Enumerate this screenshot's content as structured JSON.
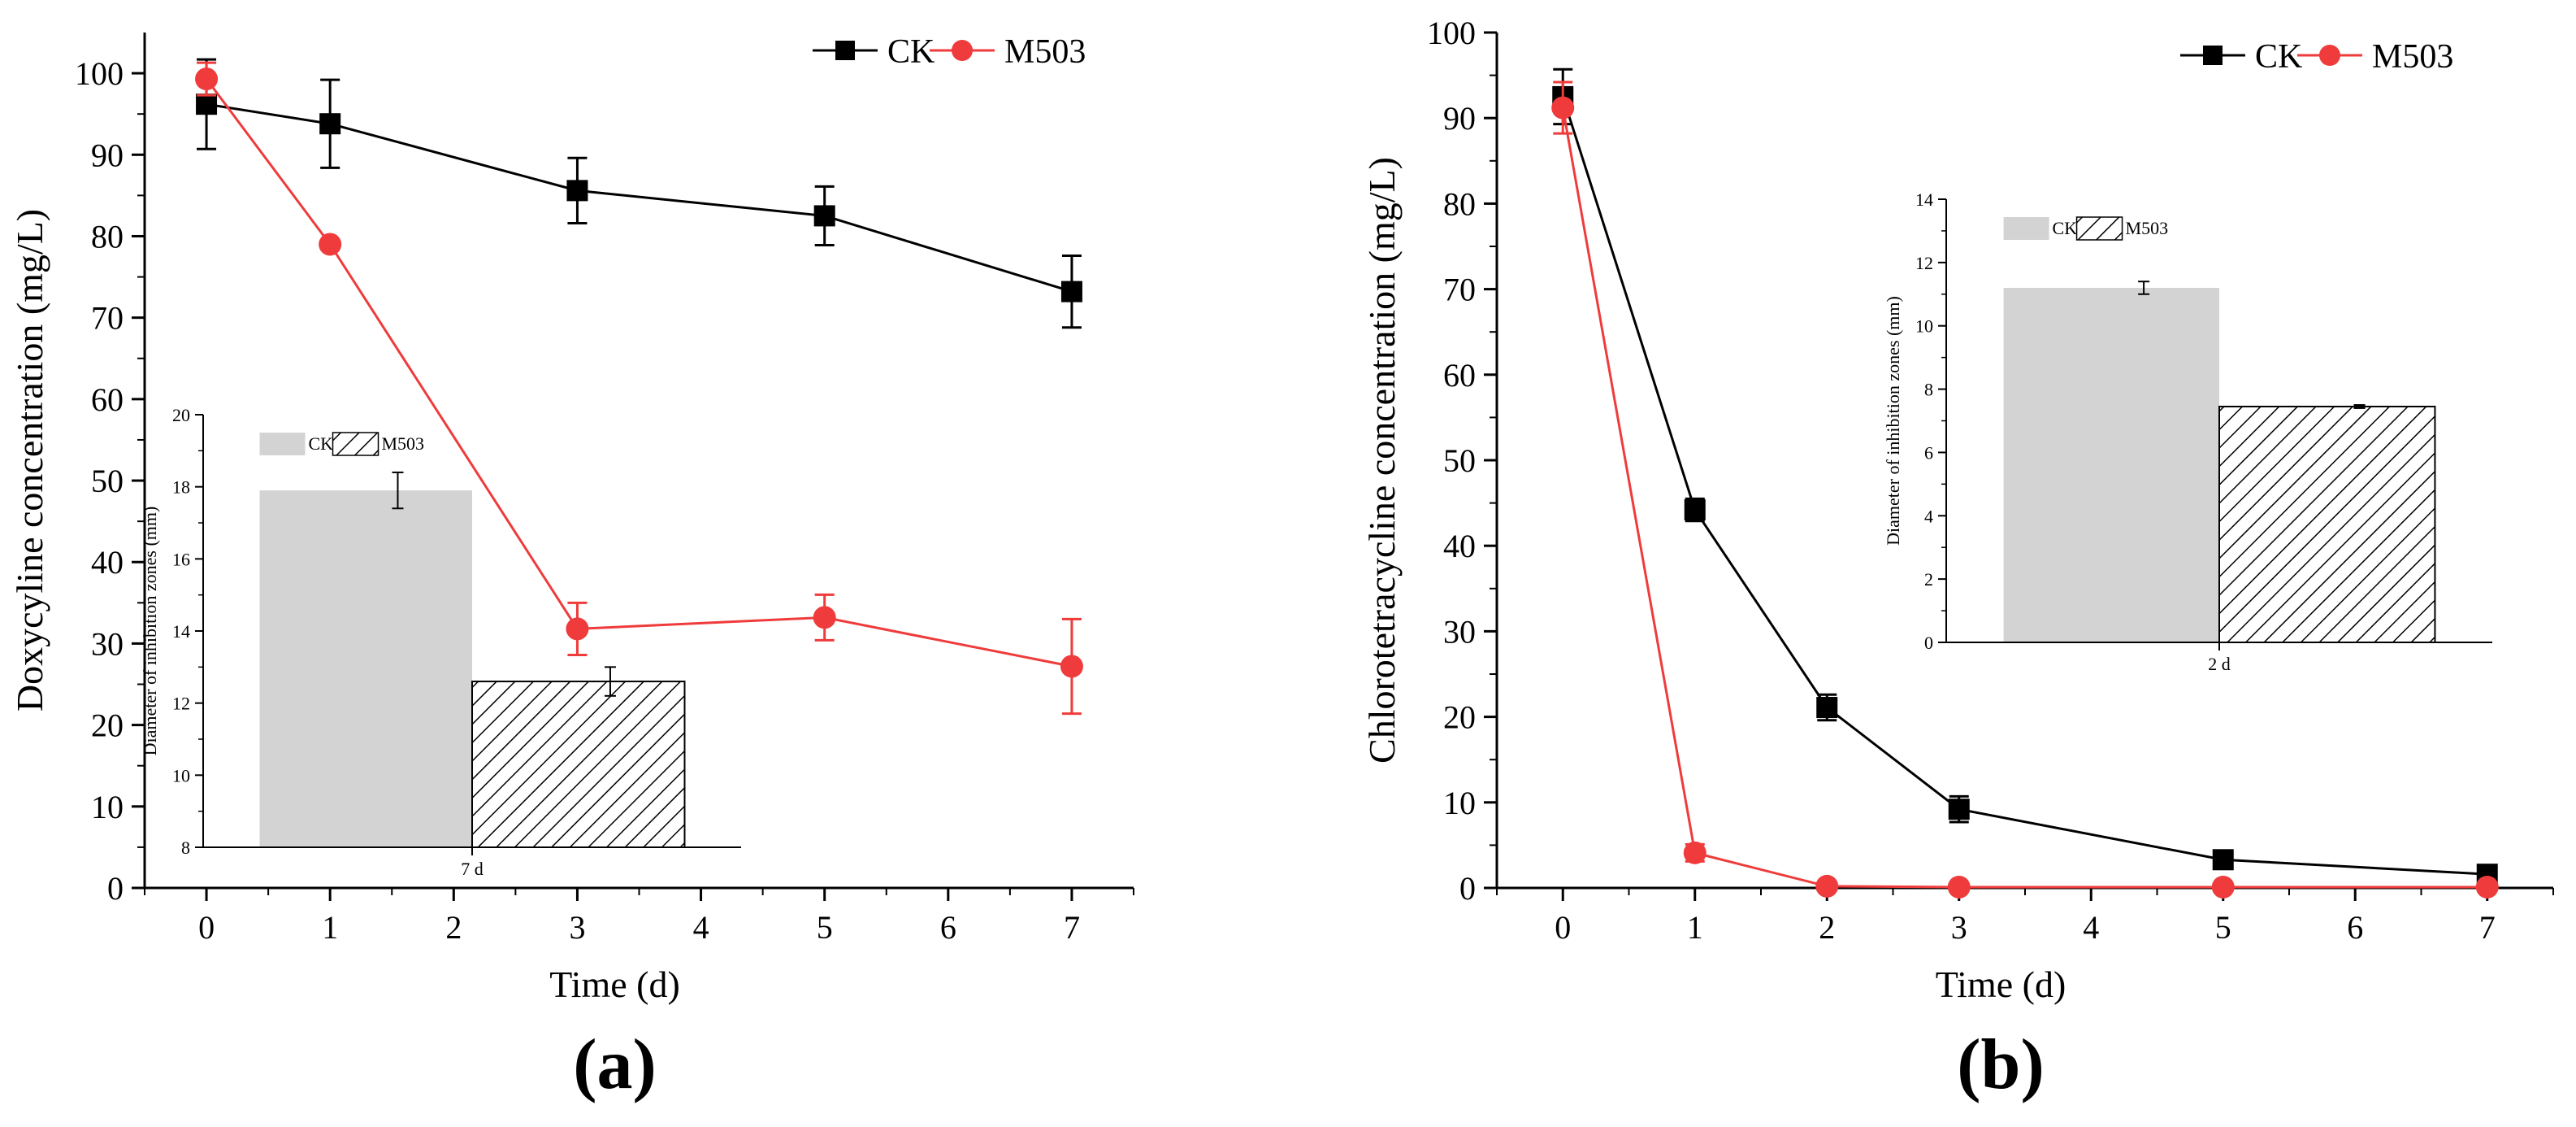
{
  "colors": {
    "ck": "#000000",
    "m503": "#ef3b3b",
    "bar_ck": "#d3d3d3",
    "axis": "#000000"
  },
  "chart_data": [
    {
      "id": "a",
      "type": "line",
      "panel_label": "(a)",
      "xlabel": "Time (d)",
      "ylabel": "Doxycyline concentration (mg/L)",
      "xlim": [
        -0.5,
        7.5
      ],
      "ylim": [
        0,
        105
      ],
      "xticks": [
        0,
        1,
        2,
        3,
        4,
        5,
        6,
        7
      ],
      "xtick_labels": [
        "0",
        "1",
        "2",
        "3",
        "4",
        "5",
        "6",
        "7"
      ],
      "yticks": [
        0,
        10,
        20,
        30,
        40,
        50,
        60,
        70,
        80,
        90,
        100
      ],
      "ytick_labels": [
        "0",
        "10",
        "20",
        "30",
        "40",
        "50",
        "60",
        "70",
        "80",
        "90",
        "100"
      ],
      "legend_position": "top-right",
      "series": [
        {
          "name": "CK",
          "color": "#000000",
          "marker": "square",
          "x": [
            0,
            1,
            3,
            5,
            7
          ],
          "y": [
            96.2,
            93.8,
            85.6,
            82.5,
            73.2
          ],
          "err": [
            5.5,
            5.4,
            4.0,
            3.6,
            4.4
          ]
        },
        {
          "name": "M503",
          "color": "#ef3b3b",
          "marker": "circle",
          "x": [
            0,
            1,
            3,
            5,
            7
          ],
          "y": [
            99.3,
            79.0,
            31.8,
            33.2,
            27.2
          ],
          "err": [
            2.0,
            0.5,
            3.2,
            2.8,
            5.8
          ]
        }
      ],
      "inset": {
        "type": "bar",
        "ylabel": "Diameter of inhibition zones (mm)",
        "category_label": "7 d",
        "ylim": [
          8,
          20
        ],
        "yticks": [
          8,
          10,
          12,
          14,
          16,
          18,
          20
        ],
        "ytick_labels": [
          "8",
          "10",
          "12",
          "14",
          "16",
          "18",
          "20"
        ],
        "legend_position": "top",
        "bars": [
          {
            "name": "CK",
            "value": 17.9,
            "err": 0.5,
            "fill": "solid"
          },
          {
            "name": "M503",
            "value": 12.6,
            "err": 0.4,
            "fill": "hatch"
          }
        ]
      }
    },
    {
      "id": "b",
      "type": "line",
      "panel_label": "(b)",
      "xlabel": "Time (d)",
      "ylabel": "Chlorotetracycline concentration (mg/L)",
      "xlim": [
        -0.5,
        7.5
      ],
      "ylim": [
        0,
        100
      ],
      "xticks": [
        0,
        1,
        2,
        3,
        4,
        5,
        6,
        7
      ],
      "xtick_labels": [
        "0",
        "1",
        "2",
        "3",
        "4",
        "5",
        "6",
        "7"
      ],
      "yticks": [
        0,
        10,
        20,
        30,
        40,
        50,
        60,
        70,
        80,
        90,
        100
      ],
      "ytick_labels": [
        "0",
        "10",
        "20",
        "30",
        "40",
        "50",
        "60",
        "70",
        "80",
        "90",
        "100"
      ],
      "legend_position": "top-right",
      "series": [
        {
          "name": "CK",
          "color": "#000000",
          "marker": "square",
          "x": [
            0,
            1,
            2,
            3,
            5,
            7
          ],
          "y": [
            92.5,
            44.2,
            21.1,
            9.2,
            3.3,
            1.6
          ],
          "err": [
            3.2,
            1.3,
            1.5,
            1.5,
            0.4,
            0.3
          ]
        },
        {
          "name": "M503",
          "color": "#ef3b3b",
          "marker": "circle",
          "x": [
            0,
            1,
            2,
            3,
            5,
            7
          ],
          "y": [
            91.2,
            4.1,
            0.2,
            0.1,
            0.1,
            0.1
          ],
          "err": [
            3.0,
            1.0,
            0.1,
            0.1,
            0.1,
            0.1
          ]
        }
      ],
      "inset": {
        "type": "bar",
        "ylabel": "Diameter of inhibition zones (mm)",
        "category_label": "2 d",
        "ylim": [
          0,
          14
        ],
        "yticks": [
          0,
          2,
          4,
          6,
          8,
          10,
          12,
          14
        ],
        "ytick_labels": [
          "0",
          "2",
          "4",
          "6",
          "8",
          "10",
          "12",
          "14"
        ],
        "legend_position": "top",
        "bars": [
          {
            "name": "CK",
            "value": 11.2,
            "err": 0.2,
            "fill": "solid"
          },
          {
            "name": "M503",
            "value": 7.45,
            "err": 0.05,
            "fill": "hatch"
          }
        ]
      }
    }
  ]
}
